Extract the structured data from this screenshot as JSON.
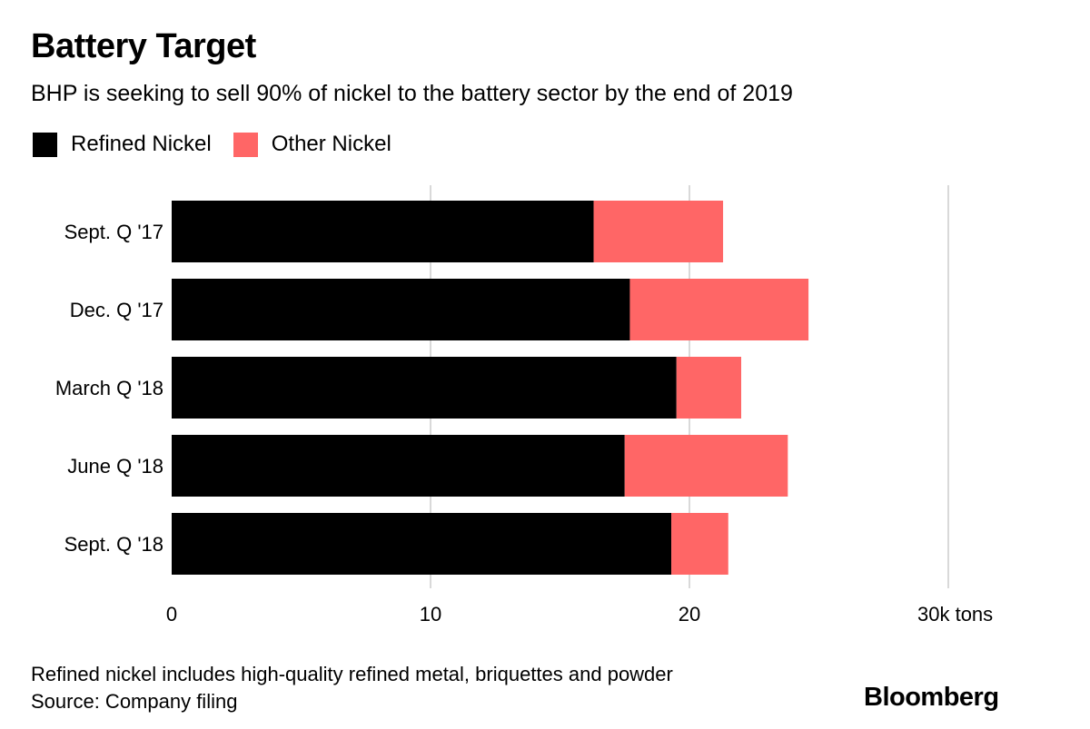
{
  "chart_data": {
    "type": "bar",
    "orientation": "horizontal",
    "stacked": true,
    "title": "Battery Target",
    "subtitle": "BHP is seeking to sell 90% of nickel to the battery sector by the end of 2019",
    "categories": [
      "Sept. Q '17",
      "Dec. Q '17",
      "March Q '18",
      "June Q '18",
      "Sept. Q '18"
    ],
    "series": [
      {
        "name": "Refined Nickel",
        "color": "#000000",
        "values": [
          16.3,
          17.7,
          19.5,
          17.5,
          19.3
        ]
      },
      {
        "name": "Other Nickel",
        "color": "#ff6666",
        "values": [
          5.0,
          6.9,
          2.5,
          6.3,
          2.2
        ]
      }
    ],
    "xlim": [
      0,
      30
    ],
    "xticks": [
      0,
      10,
      20,
      30
    ],
    "xtick_labels": [
      "0",
      "10",
      "20",
      "30k tons"
    ],
    "grid": true,
    "legend": "top-left"
  },
  "footnote": {
    "line1": "Refined nickel includes high-quality refined metal, briquettes and powder",
    "line2": "Source: Company filing"
  },
  "brand": "Bloomberg"
}
